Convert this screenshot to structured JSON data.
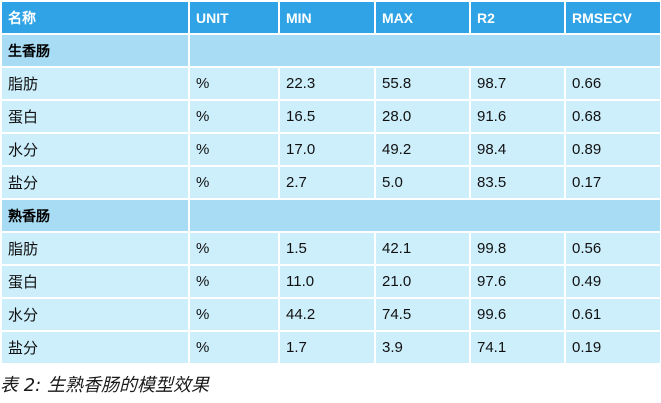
{
  "table": {
    "headers": [
      "名称",
      "UNIT",
      "MIN",
      "MAX",
      "R2",
      "RMSECV"
    ],
    "sections": [
      {
        "title": "生香肠",
        "rows": [
          [
            "脂肪",
            "%",
            "22.3",
            "55.8",
            "98.7",
            "0.66"
          ],
          [
            "蛋白",
            "%",
            "16.5",
            "28.0",
            "91.6",
            "0.68"
          ],
          [
            "水分",
            "%",
            "17.0",
            "49.2",
            "98.4",
            "0.89"
          ],
          [
            "盐分",
            "%",
            "2.7",
            "5.0",
            "83.5",
            "0.17"
          ]
        ]
      },
      {
        "title": "熟香肠",
        "rows": [
          [
            "脂肪",
            "%",
            "1.5",
            "42.1",
            "99.8",
            "0.56"
          ],
          [
            "蛋白",
            "%",
            "11.0",
            "21.0",
            "97.6",
            "0.49"
          ],
          [
            "水分",
            "%",
            "44.2",
            "74.5",
            "99.6",
            "0.61"
          ],
          [
            "盐分",
            "%",
            "1.7",
            "3.9",
            "74.1",
            "0.19"
          ]
        ]
      }
    ]
  },
  "caption": "表 2: 生熟香肠的模型效果",
  "colors": {
    "header_bg": "#2fa3e6",
    "section_bg": "#a7dcf4",
    "row_bg": "#cdeefb"
  }
}
